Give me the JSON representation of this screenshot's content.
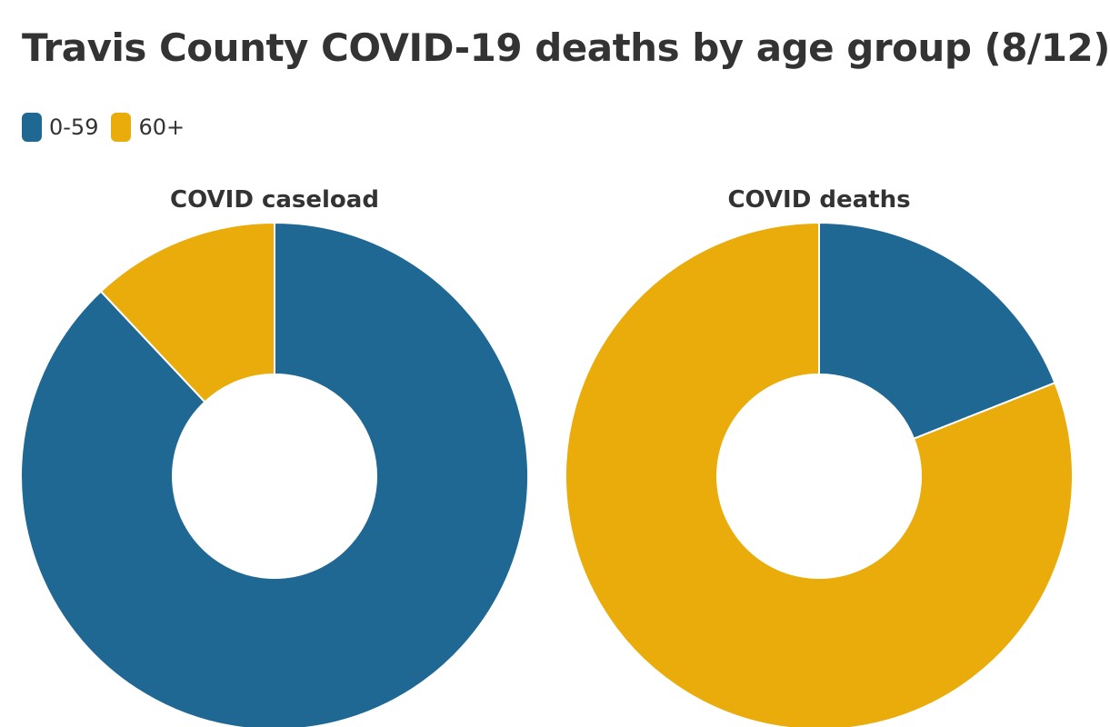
{
  "title": "Travis County COVID-19 deaths by age group (8/12)",
  "legend": [
    {
      "label": "0-59",
      "color": "#1f6894"
    },
    {
      "label": "60+",
      "color": "#e9ac0b"
    }
  ],
  "chart_data": [
    {
      "type": "pie",
      "title": "COVID caseload",
      "categories": [
        "0-59",
        "60+"
      ],
      "values": [
        88,
        12
      ],
      "colors": [
        "#1f6894",
        "#e9ac0b"
      ]
    },
    {
      "type": "pie",
      "title": "COVID deaths",
      "categories": [
        "0-59",
        "60+"
      ],
      "values": [
        19,
        81
      ],
      "colors": [
        "#1f6894",
        "#e9ac0b"
      ]
    }
  ]
}
